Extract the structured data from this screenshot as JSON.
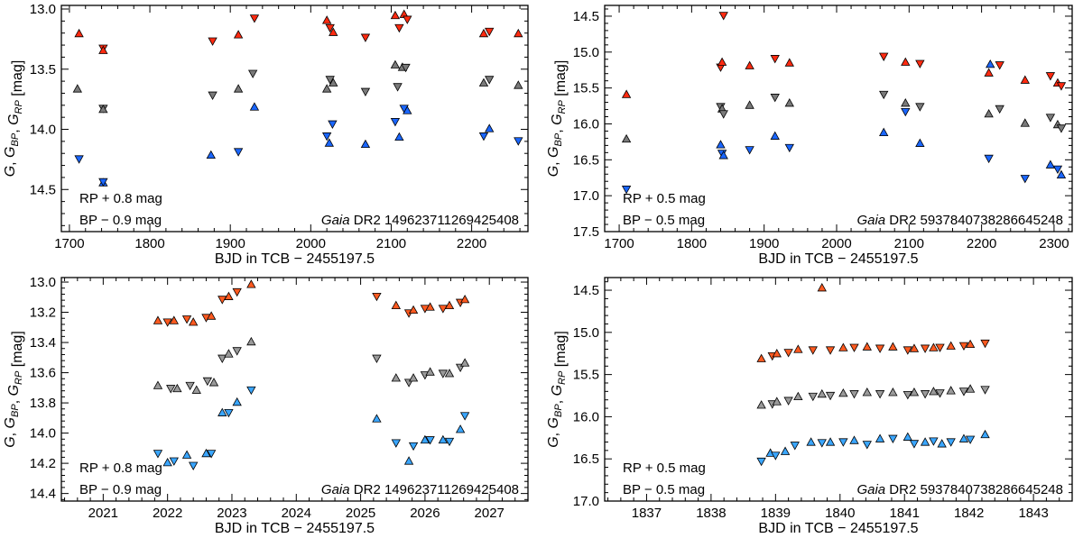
{
  "figure": {
    "type": "scatter",
    "description_labels": {
      "xlabel": "BJD in TCB − 2455197.5",
      "ylabel_main": "G, G",
      "ylabel_sub_bp": "BP",
      "ylabel_sep": ", G",
      "ylabel_sub_rp": "RP",
      "ylabel_unit": " [mag]",
      "gaia_word": "Gaia"
    }
  },
  "colors": {
    "g_top": "#7a7a7a",
    "bp_top": "#1a66ff",
    "rp_top": "#ff2a10",
    "g_bottom": "#9a9a9a",
    "bp_bottom": "#3aa6ff",
    "rp_bottom": "#ff5a20",
    "stroke": "#000000"
  },
  "chart_data": [
    {
      "id": "p1",
      "type": "scatter",
      "xlim": [
        1690,
        2270
      ],
      "ylim": [
        14.85,
        12.97
      ],
      "xticks": [
        1700,
        1800,
        1900,
        2000,
        2100,
        2200
      ],
      "yticks": [
        13.0,
        13.5,
        14.0,
        14.5
      ],
      "ytick_decimals": 1,
      "xlabel": "BJD in TCB − 2455197.5",
      "note_rp": "RP + 0.8 mag",
      "note_bp": "BP − 0.9 mag",
      "source_id": "DR2 149623711269425408",
      "series": [
        {
          "name": "G",
          "x": [
            1710,
            1742,
            1742,
            1878,
            1910,
            1928,
            2020,
            2024,
            2028,
            2068,
            2105,
            2108,
            2114,
            2118,
            2215,
            2222,
            2258
          ],
          "y": [
            13.67,
            13.82,
            13.84,
            13.71,
            13.67,
            13.53,
            13.67,
            13.58,
            13.62,
            13.68,
            13.47,
            13.64,
            13.49,
            13.48,
            13.62,
            13.58,
            13.64
          ]
        },
        {
          "name": "BP",
          "x": [
            1712,
            1742,
            1742,
            1876,
            1910,
            1930,
            2020,
            2023,
            2027,
            2068,
            2105,
            2110,
            2116,
            2120,
            2215,
            2222,
            2258
          ],
          "y": [
            14.24,
            14.45,
            14.43,
            14.22,
            14.18,
            13.82,
            14.05,
            14.12,
            13.95,
            14.13,
            13.93,
            14.07,
            13.82,
            13.85,
            14.05,
            14.0,
            14.09
          ]
        },
        {
          "name": "RP",
          "x": [
            1712,
            1742,
            1742,
            1878,
            1910,
            1930,
            2020,
            2024,
            2028,
            2068,
            2105,
            2110,
            2116,
            2120,
            2215,
            2222,
            2258
          ],
          "y": [
            13.21,
            13.32,
            13.35,
            13.26,
            13.22,
            13.07,
            13.1,
            13.15,
            13.2,
            13.23,
            13.06,
            13.15,
            13.05,
            13.08,
            13.21,
            13.18,
            13.21
          ]
        }
      ]
    },
    {
      "id": "p2",
      "type": "scatter",
      "xlim": [
        1680,
        2325
      ],
      "ylim": [
        17.5,
        14.35
      ],
      "xticks": [
        1700,
        1800,
        1900,
        2000,
        2100,
        2200,
        2300
      ],
      "yticks": [
        14.5,
        15.0,
        15.5,
        16.0,
        16.5,
        17.0,
        17.5
      ],
      "ytick_decimals": 1,
      "xlabel": "BJD in TCB − 2455197.5",
      "note_rp": "RP + 0.5 mag",
      "note_bp": "BP − 0.5 mag",
      "source_id": "DR2 5937840738286645248",
      "series": [
        {
          "name": "G",
          "x": [
            1710,
            1840,
            1842,
            1844,
            1880,
            1915,
            1935,
            2065,
            2095,
            2115,
            2210,
            2225,
            2260,
            2295,
            2305,
            2310
          ],
          "y": [
            16.22,
            15.75,
            15.8,
            15.85,
            15.75,
            15.62,
            15.72,
            15.58,
            15.72,
            15.75,
            15.87,
            15.78,
            16.0,
            15.9,
            16.02,
            16.05
          ]
        },
        {
          "name": "BP",
          "x": [
            1710,
            1840,
            1842,
            1844,
            1880,
            1915,
            1935,
            2065,
            2095,
            2115,
            2210,
            2212,
            2260,
            2295,
            2305,
            2310
          ],
          "y": [
            16.9,
            16.3,
            16.4,
            16.45,
            16.35,
            16.18,
            16.32,
            16.13,
            15.82,
            16.28,
            16.47,
            15.18,
            16.75,
            16.58,
            16.62,
            16.72
          ]
        },
        {
          "name": "RP",
          "x": [
            1710,
            1840,
            1842,
            1844,
            1880,
            1915,
            1935,
            2065,
            2095,
            2115,
            2210,
            2225,
            2260,
            2295,
            2305,
            2310
          ],
          "y": [
            15.6,
            15.2,
            15.15,
            14.48,
            15.2,
            15.08,
            15.16,
            15.05,
            15.15,
            15.15,
            15.3,
            15.17,
            15.4,
            15.32,
            15.44,
            15.46
          ]
        }
      ]
    },
    {
      "id": "p3",
      "type": "scatter",
      "xlim": [
        2020.35,
        2027.6
      ],
      "ylim": [
        14.45,
        12.97
      ],
      "xticks": [
        2021,
        2022,
        2023,
        2024,
        2025,
        2026,
        2027
      ],
      "yticks": [
        13.0,
        13.2,
        13.4,
        13.6,
        13.8,
        14.0,
        14.2,
        14.4
      ],
      "ytick_decimals": 1,
      "xlabel": "BJD in TCB − 2455197.5",
      "note_rp": "RP + 0.8 mag",
      "note_bp": "BP − 0.9 mag",
      "source_id": "DR2 149623711269425408",
      "series": [
        {
          "name": "G",
          "x": [
            2021.85,
            2022.05,
            2022.15,
            2022.35,
            2022.45,
            2022.62,
            2022.72,
            2022.85,
            2022.95,
            2023.08,
            2023.3,
            2025.25,
            2025.55,
            2025.75,
            2025.82,
            2026.0,
            2026.08,
            2026.28,
            2026.38,
            2026.55,
            2026.62
          ],
          "y": [
            13.69,
            13.7,
            13.71,
            13.68,
            13.72,
            13.65,
            13.67,
            13.5,
            13.48,
            13.45,
            13.4,
            13.5,
            13.64,
            13.66,
            13.64,
            13.61,
            13.6,
            13.6,
            13.61,
            13.56,
            13.54
          ]
        },
        {
          "name": "BP",
          "x": [
            2021.85,
            2022.0,
            2022.1,
            2022.3,
            2022.4,
            2022.6,
            2022.68,
            2022.85,
            2022.95,
            2023.08,
            2023.3,
            2025.25,
            2025.55,
            2025.75,
            2025.82,
            2026.0,
            2026.08,
            2026.28,
            2026.38,
            2026.55,
            2026.62
          ],
          "y": [
            14.13,
            14.2,
            14.18,
            14.15,
            14.21,
            14.14,
            14.13,
            13.87,
            13.86,
            13.8,
            13.71,
            13.91,
            14.06,
            14.19,
            14.08,
            14.05,
            14.04,
            14.05,
            14.05,
            13.98,
            13.88
          ]
        },
        {
          "name": "RP",
          "x": [
            2021.85,
            2022.0,
            2022.1,
            2022.3,
            2022.4,
            2022.6,
            2022.68,
            2022.85,
            2022.95,
            2023.08,
            2023.3,
            2025.25,
            2025.55,
            2025.75,
            2025.82,
            2026.0,
            2026.08,
            2026.28,
            2026.38,
            2026.55,
            2026.62
          ],
          "y": [
            13.26,
            13.26,
            13.26,
            13.24,
            13.27,
            13.23,
            13.23,
            13.11,
            13.1,
            13.06,
            13.02,
            13.09,
            13.16,
            13.2,
            13.19,
            13.17,
            13.17,
            13.17,
            13.16,
            13.13,
            13.12
          ]
        }
      ]
    },
    {
      "id": "p4",
      "type": "scatter",
      "xlim": [
        1836.35,
        1843.6
      ],
      "ylim": [
        17.0,
        14.35
      ],
      "xticks": [
        1837,
        1838,
        1839,
        1840,
        1841,
        1842,
        1843
      ],
      "yticks": [
        14.5,
        15.0,
        15.5,
        16.0,
        16.5,
        17.0
      ],
      "ytick_decimals": 1,
      "xlabel": "BJD in TCB − 2455197.5",
      "note_rp": "RP + 0.5 mag",
      "note_bp": "BP − 0.5 mag",
      "source_id": "DR2 5937840738286645248",
      "series": [
        {
          "name": "G",
          "x": [
            1838.78,
            1838.95,
            1839.02,
            1839.2,
            1839.35,
            1839.58,
            1839.72,
            1839.85,
            1840.05,
            1840.22,
            1840.42,
            1840.62,
            1840.82,
            1841.05,
            1841.15,
            1841.32,
            1841.45,
            1841.55,
            1841.72,
            1841.92,
            1842.02,
            1842.25
          ],
          "y": [
            15.87,
            15.84,
            15.83,
            15.8,
            15.77,
            15.75,
            15.74,
            15.74,
            15.73,
            15.72,
            15.72,
            15.72,
            15.72,
            15.73,
            15.72,
            15.72,
            15.71,
            15.71,
            15.7,
            15.69,
            15.68,
            15.67
          ]
        },
        {
          "name": "BP",
          "x": [
            1838.78,
            1838.92,
            1839.0,
            1839.15,
            1839.3,
            1839.55,
            1839.72,
            1839.85,
            1840.05,
            1840.22,
            1840.42,
            1840.62,
            1840.82,
            1841.05,
            1841.15,
            1841.32,
            1841.45,
            1841.58,
            1841.72,
            1841.92,
            1842.02,
            1842.25
          ],
          "y": [
            16.52,
            16.44,
            16.45,
            16.42,
            16.33,
            16.31,
            16.3,
            16.31,
            16.29,
            16.29,
            16.32,
            16.27,
            16.25,
            16.25,
            16.31,
            16.31,
            16.28,
            16.33,
            16.29,
            16.27,
            16.26,
            16.22
          ]
        },
        {
          "name": "RP",
          "x": [
            1838.78,
            1838.95,
            1839.02,
            1839.2,
            1839.35,
            1839.58,
            1839.72,
            1839.85,
            1840.05,
            1840.22,
            1840.42,
            1840.62,
            1840.82,
            1841.05,
            1841.15,
            1841.32,
            1841.45,
            1841.55,
            1841.72,
            1841.92,
            1842.02,
            1842.25
          ],
          "y": [
            15.32,
            15.27,
            15.26,
            15.23,
            15.21,
            15.2,
            14.48,
            15.2,
            15.19,
            15.17,
            15.18,
            15.18,
            15.18,
            15.2,
            15.2,
            15.18,
            15.19,
            15.17,
            15.17,
            15.15,
            15.15,
            15.12
          ]
        }
      ]
    }
  ]
}
